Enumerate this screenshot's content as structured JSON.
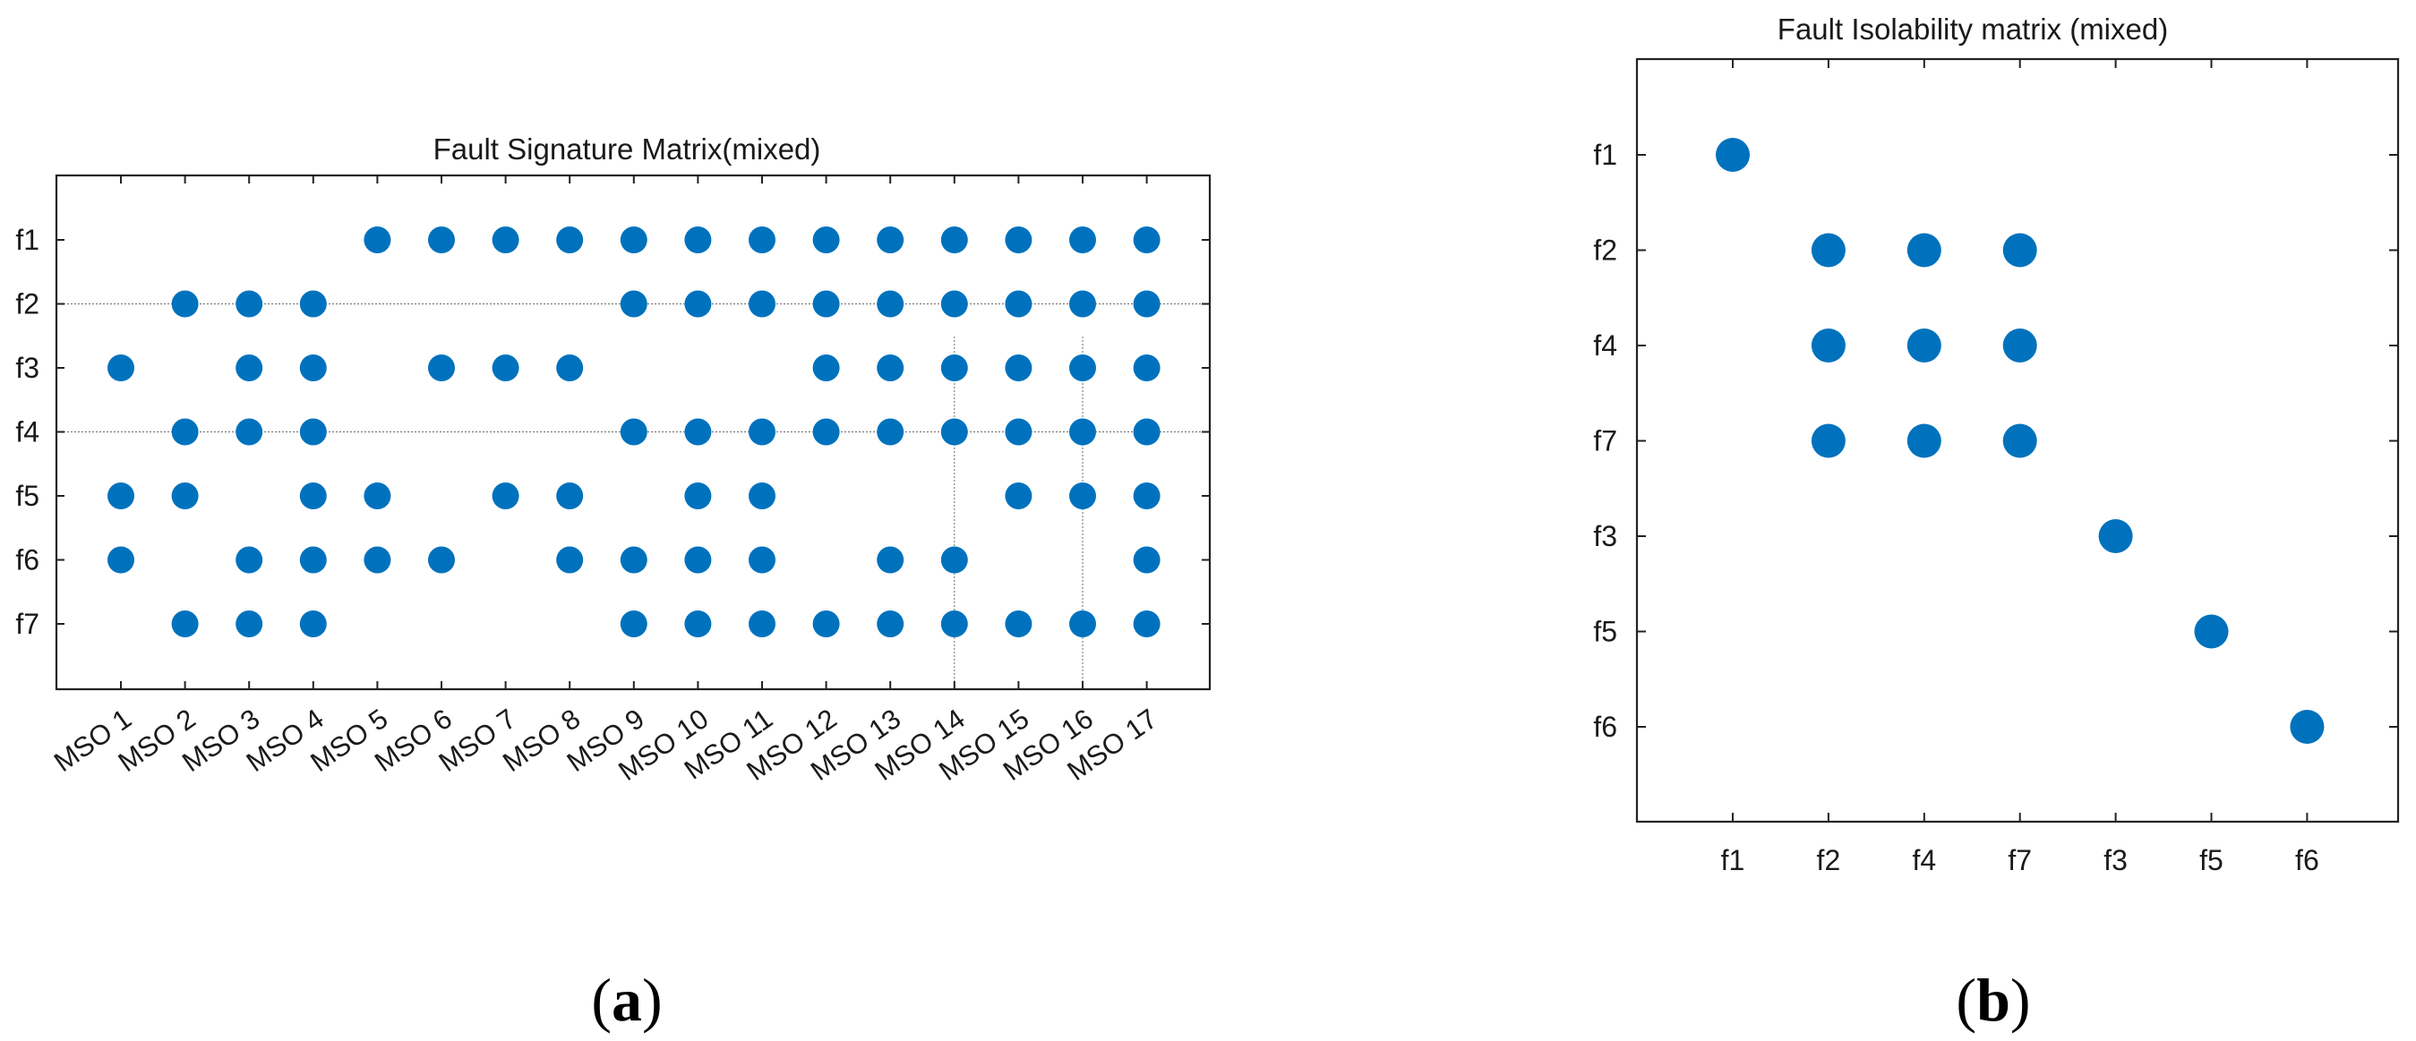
{
  "colors": {
    "marker": "#0072BD",
    "axis": "#222222",
    "guide": "#6b6b6b"
  },
  "chart_data": [
    {
      "type": "scatter",
      "title": "Fault Signature Matrix(mixed)",
      "caption": "a",
      "x_categories": [
        "MSO 1",
        "MSO 2",
        "MSO 3",
        "MSO 4",
        "MSO 5",
        "MSO 6",
        "MSO 7",
        "MSO 8",
        "MSO 9",
        "MSO 10",
        "MSO 11",
        "MSO 12",
        "MSO 13",
        "MSO 14",
        "MSO 15",
        "MSO 16",
        "MSO 17"
      ],
      "y_categories": [
        "f1",
        "f2",
        "f3",
        "f4",
        "f5",
        "f6",
        "f7"
      ],
      "xlabel": "",
      "ylabel": "",
      "grid": false,
      "points": [
        {
          "y": "f1",
          "x": [
            "MSO 5",
            "MSO 6",
            "MSO 7",
            "MSO 8",
            "MSO 9",
            "MSO 10",
            "MSO 11",
            "MSO 12",
            "MSO 13",
            "MSO 14",
            "MSO 15",
            "MSO 16",
            "MSO 17"
          ]
        },
        {
          "y": "f2",
          "x": [
            "MSO 2",
            "MSO 3",
            "MSO 4",
            "MSO 9",
            "MSO 10",
            "MSO 11",
            "MSO 12",
            "MSO 13",
            "MSO 14",
            "MSO 15",
            "MSO 16",
            "MSO 17"
          ]
        },
        {
          "y": "f3",
          "x": [
            "MSO 1",
            "MSO 3",
            "MSO 4",
            "MSO 6",
            "MSO 7",
            "MSO 8",
            "MSO 12",
            "MSO 13",
            "MSO 14",
            "MSO 15",
            "MSO 16",
            "MSO 17"
          ]
        },
        {
          "y": "f4",
          "x": [
            "MSO 2",
            "MSO 3",
            "MSO 4",
            "MSO 9",
            "MSO 10",
            "MSO 11",
            "MSO 12",
            "MSO 13",
            "MSO 14",
            "MSO 15",
            "MSO 16",
            "MSO 17"
          ]
        },
        {
          "y": "f5",
          "x": [
            "MSO 1",
            "MSO 2",
            "MSO 4",
            "MSO 5",
            "MSO 7",
            "MSO 8",
            "MSO 10",
            "MSO 11",
            "MSO 15",
            "MSO 16",
            "MSO 17"
          ]
        },
        {
          "y": "f6",
          "x": [
            "MSO 1",
            "MSO 3",
            "MSO 4",
            "MSO 5",
            "MSO 6",
            "MSO 8",
            "MSO 9",
            "MSO 10",
            "MSO 11",
            "MSO 13",
            "MSO 14",
            "MSO 17"
          ]
        },
        {
          "y": "f7",
          "x": [
            "MSO 2",
            "MSO 3",
            "MSO 4",
            "MSO 9",
            "MSO 10",
            "MSO 11",
            "MSO 12",
            "MSO 13",
            "MSO 14",
            "MSO 15",
            "MSO 16",
            "MSO 17"
          ]
        }
      ]
    },
    {
      "type": "scatter",
      "title": "Fault Isolability matrix (mixed)",
      "caption": "b",
      "x_categories": [
        "f1",
        "f2",
        "f4",
        "f7",
        "f3",
        "f5",
        "f6"
      ],
      "y_categories": [
        "f1",
        "f2",
        "f4",
        "f7",
        "f3",
        "f5",
        "f6"
      ],
      "xlabel": "",
      "ylabel": "",
      "grid": false,
      "points": [
        {
          "y": "f1",
          "x": [
            "f1"
          ]
        },
        {
          "y": "f2",
          "x": [
            "f2",
            "f4",
            "f7"
          ]
        },
        {
          "y": "f4",
          "x": [
            "f2",
            "f4",
            "f7"
          ]
        },
        {
          "y": "f7",
          "x": [
            "f2",
            "f4",
            "f7"
          ]
        },
        {
          "y": "f3",
          "x": [
            "f3"
          ]
        },
        {
          "y": "f5",
          "x": [
            "f5"
          ]
        },
        {
          "y": "f6",
          "x": [
            "f6"
          ]
        }
      ]
    }
  ]
}
